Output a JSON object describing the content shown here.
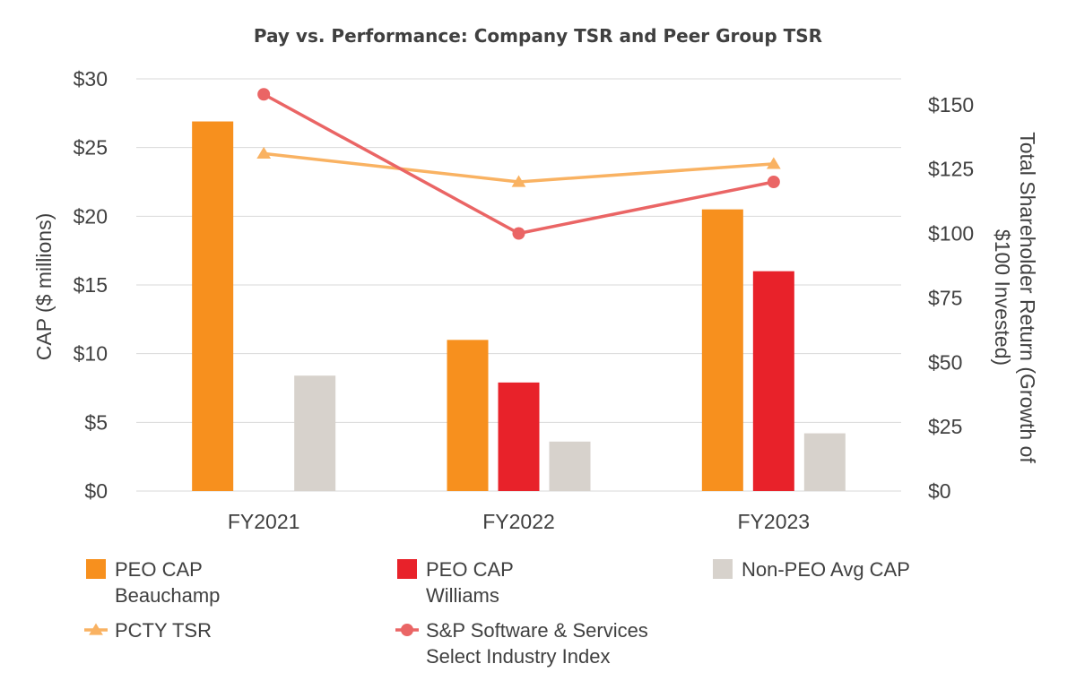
{
  "chart_data": {
    "type": "bar",
    "title": "Pay vs. Performance: Company TSR and Peer Group TSR",
    "categories": [
      "FY2021",
      "FY2022",
      "FY2023"
    ],
    "ylabel": "CAP ($ millions)",
    "ylabel2_line1": "Total Shareholder Return (Growth of",
    "ylabel2_line2": "$100 Invested)",
    "ylim": [
      0,
      30
    ],
    "ylim2": [
      0,
      160
    ],
    "yticks": [
      0,
      5,
      10,
      15,
      20,
      25,
      30
    ],
    "ytick_labels": [
      "$0",
      "$5",
      "$10",
      "$15",
      "$20",
      "$25",
      "$30"
    ],
    "y2ticks": [
      0,
      25,
      50,
      75,
      100,
      125,
      150
    ],
    "y2tick_labels": [
      "$0",
      "$25",
      "$50",
      "$75",
      "$100",
      "$125",
      "$150"
    ],
    "bar_series": [
      {
        "name_line1": "PEO CAP",
        "name_line2": "Beauchamp",
        "color": "#f7901e",
        "values": [
          26.9,
          11.0,
          20.5
        ]
      },
      {
        "name_line1": "PEO CAP",
        "name_line2": "Williams",
        "color": "#e8222a",
        "values": [
          null,
          7.9,
          16.0
        ]
      },
      {
        "name_line1": "Non-PEO Avg CAP",
        "name_line2": "",
        "color": "#d7d2cc",
        "values": [
          8.4,
          3.6,
          4.2
        ]
      }
    ],
    "line_series": [
      {
        "name_line1": "PCTY TSR",
        "name_line2": "",
        "color": "#f9b262",
        "marker": "triangle",
        "values": [
          131,
          120,
          127
        ]
      },
      {
        "name_line1": "S&P Software & Services",
        "name_line2": "Select Industry Index",
        "color": "#ea6565",
        "marker": "circle",
        "values": [
          154,
          100,
          120
        ]
      }
    ],
    "legend_position": "bottom"
  }
}
